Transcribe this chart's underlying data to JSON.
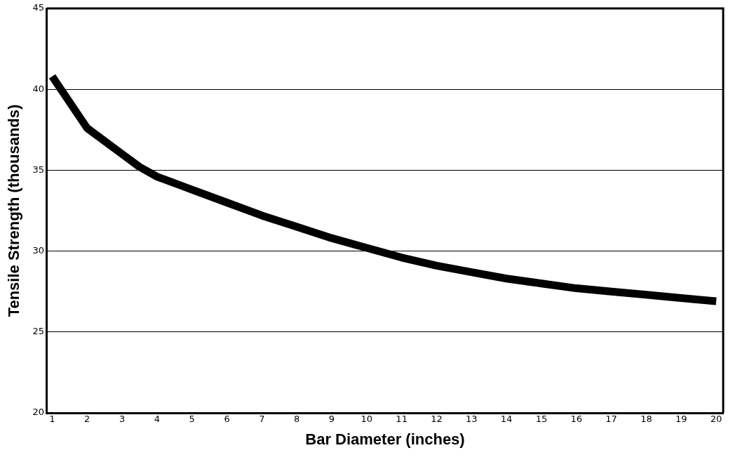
{
  "chart_data": {
    "type": "line",
    "xlabel": "Bar Diameter (inches)",
    "ylabel": "Tensile Strength (thousands)",
    "x": [
      1,
      2,
      3,
      3.5,
      4,
      5,
      6,
      7,
      8,
      9,
      10,
      11,
      12,
      13,
      14,
      15,
      16,
      17,
      18,
      19,
      20
    ],
    "series": [
      {
        "color": "#000000",
        "values": [
          40.8,
          37.6,
          36.0,
          35.2,
          34.6,
          33.8,
          33.0,
          32.2,
          31.5,
          30.8,
          30.2,
          29.6,
          29.1,
          28.7,
          28.3,
          28.0,
          27.7,
          27.5,
          27.3,
          27.1,
          26.9
        ]
      }
    ],
    "xlim": [
      0.85,
      20.2
    ],
    "xticks": [
      1,
      2,
      3,
      4,
      5,
      6,
      7,
      8,
      9,
      10,
      11,
      12,
      13,
      14,
      15,
      16,
      17,
      18,
      19,
      20
    ],
    "ylim": [
      20,
      45
    ],
    "yticks": [
      20,
      25,
      30,
      35,
      40,
      45
    ],
    "grid": "y",
    "legend": false,
    "marker": "none",
    "line_style": "solid"
  }
}
